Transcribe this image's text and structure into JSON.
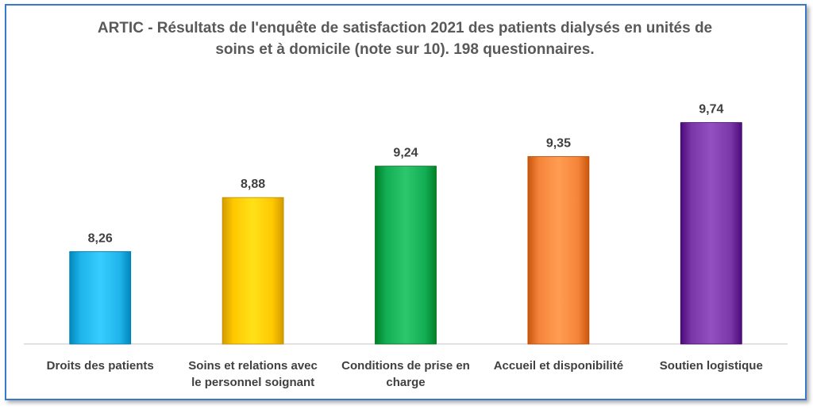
{
  "chart_data": {
    "type": "bar",
    "title_lines": [
      "ARTIC - Résultats de l'enquête de satisfaction 2021 des patients dialysés en unités de",
      "soins et à domicile (note sur 10). 198 questionnaires."
    ],
    "categories": [
      "Droits des patients",
      "Soins et relations avec le personnel soignant",
      "Conditions de prise en charge",
      "Accueil et disponibilité",
      "Soutien logistique"
    ],
    "category_lines": [
      [
        "Droits des patients"
      ],
      [
        "Soins et relations avec",
        "le personnel soignant"
      ],
      [
        "Conditions de prise en",
        "charge"
      ],
      [
        "Accueil et disponibilité"
      ],
      [
        "Soutien logistique"
      ]
    ],
    "values": [
      8.26,
      8.88,
      9.24,
      9.35,
      9.74
    ],
    "value_labels": [
      "8,26",
      "8,88",
      "9,24",
      "9,35",
      "9,74"
    ],
    "colors": [
      "#1fb4ea",
      "#ffc800",
      "#13ad54",
      "#f5843a",
      "#7a37a8"
    ],
    "xlabel": "",
    "ylabel": "",
    "ylim": [
      7.2,
      10.2
    ],
    "grid": false,
    "legend": "none"
  }
}
